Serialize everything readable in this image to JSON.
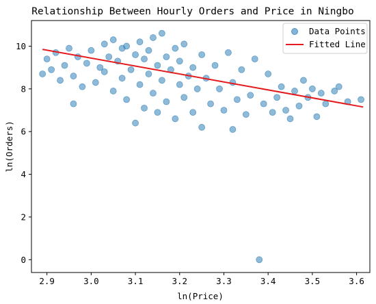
{
  "chart_data": {
    "type": "scatter",
    "title": "Relationship Between Hourly Orders and Price in Ningbo",
    "xlabel": "ln(Price)",
    "ylabel": "ln(Orders)",
    "xlim": [
      2.865,
      3.63
    ],
    "ylim": [
      -0.6,
      11.2
    ],
    "xticks": [
      2.9,
      3.0,
      3.1,
      3.2,
      3.3,
      3.4,
      3.5,
      3.6
    ],
    "xtick_labels": [
      "2.9",
      "3.0",
      "3.1",
      "3.2",
      "3.3",
      "3.4",
      "3.5",
      "3.6"
    ],
    "yticks": [
      0,
      2,
      4,
      6,
      8,
      10
    ],
    "ytick_labels": [
      "0",
      "2",
      "4",
      "6",
      "8",
      "10"
    ],
    "grid": false,
    "legend": "top-right",
    "series": [
      {
        "name": "Data Points",
        "kind": "scatter",
        "color": "#1f77b4",
        "points": [
          [
            2.89,
            8.7
          ],
          [
            2.9,
            9.4
          ],
          [
            2.91,
            8.9
          ],
          [
            2.92,
            9.7
          ],
          [
            2.93,
            8.4
          ],
          [
            2.94,
            9.1
          ],
          [
            2.95,
            9.9
          ],
          [
            2.96,
            7.3
          ],
          [
            2.96,
            8.6
          ],
          [
            2.97,
            9.5
          ],
          [
            2.98,
            8.1
          ],
          [
            2.99,
            9.2
          ],
          [
            3.0,
            9.8
          ],
          [
            3.01,
            8.3
          ],
          [
            3.02,
            9.0
          ],
          [
            3.03,
            10.1
          ],
          [
            3.03,
            8.8
          ],
          [
            3.04,
            9.5
          ],
          [
            3.05,
            7.9
          ],
          [
            3.05,
            10.3
          ],
          [
            3.06,
            9.3
          ],
          [
            3.07,
            8.5
          ],
          [
            3.07,
            9.9
          ],
          [
            3.08,
            7.5
          ],
          [
            3.08,
            10.0
          ],
          [
            3.09,
            8.9
          ],
          [
            3.1,
            9.6
          ],
          [
            3.1,
            6.4
          ],
          [
            3.11,
            8.2
          ],
          [
            3.11,
            10.2
          ],
          [
            3.12,
            9.4
          ],
          [
            3.12,
            7.1
          ],
          [
            3.13,
            8.7
          ],
          [
            3.13,
            9.8
          ],
          [
            3.14,
            10.4
          ],
          [
            3.14,
            7.8
          ],
          [
            3.15,
            9.1
          ],
          [
            3.15,
            6.9
          ],
          [
            3.16,
            8.4
          ],
          [
            3.16,
            10.6
          ],
          [
            3.17,
            9.5
          ],
          [
            3.17,
            7.4
          ],
          [
            3.18,
            8.9
          ],
          [
            3.19,
            9.9
          ],
          [
            3.19,
            6.6
          ],
          [
            3.2,
            8.2
          ],
          [
            3.2,
            9.3
          ],
          [
            3.21,
            7.6
          ],
          [
            3.21,
            10.1
          ],
          [
            3.22,
            8.6
          ],
          [
            3.23,
            9.0
          ],
          [
            3.23,
            6.9
          ],
          [
            3.24,
            8.0
          ],
          [
            3.25,
            9.6
          ],
          [
            3.25,
            6.2
          ],
          [
            3.26,
            8.5
          ],
          [
            3.27,
            7.3
          ],
          [
            3.28,
            9.1
          ],
          [
            3.29,
            8.0
          ],
          [
            3.3,
            7.0
          ],
          [
            3.31,
            9.7
          ],
          [
            3.32,
            6.1
          ],
          [
            3.32,
            8.3
          ],
          [
            3.33,
            7.5
          ],
          [
            3.34,
            8.9
          ],
          [
            3.35,
            6.8
          ],
          [
            3.36,
            7.7
          ],
          [
            3.37,
            9.4
          ],
          [
            3.38,
            0.0
          ],
          [
            3.39,
            7.3
          ],
          [
            3.4,
            8.7
          ],
          [
            3.41,
            6.9
          ],
          [
            3.42,
            7.6
          ],
          [
            3.43,
            8.1
          ],
          [
            3.44,
            7.0
          ],
          [
            3.45,
            6.6
          ],
          [
            3.46,
            7.9
          ],
          [
            3.47,
            7.2
          ],
          [
            3.48,
            8.4
          ],
          [
            3.49,
            7.6
          ],
          [
            3.5,
            8.0
          ],
          [
            3.51,
            6.7
          ],
          [
            3.52,
            7.8
          ],
          [
            3.53,
            7.3
          ],
          [
            3.55,
            7.9
          ],
          [
            3.56,
            8.1
          ],
          [
            3.58,
            7.4
          ],
          [
            3.61,
            7.5
          ]
        ]
      },
      {
        "name": "Fitted Line",
        "kind": "line",
        "color": "#e41a1c",
        "points": [
          [
            2.89,
            9.85
          ],
          [
            3.615,
            7.15
          ]
        ]
      }
    ]
  }
}
